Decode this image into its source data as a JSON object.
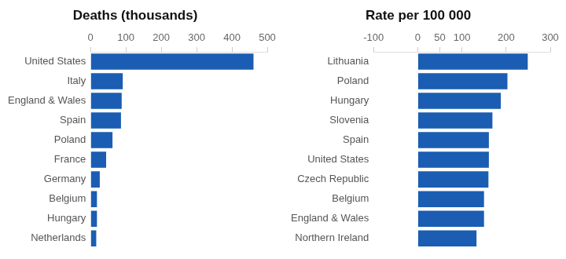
{
  "chart_data": [
    {
      "type": "bar",
      "title": "Deaths (thousands)",
      "orientation": "horizontal",
      "grid": false,
      "color": "#1a5db3",
      "categories": [
        "United States",
        "Italy",
        "England & Wales",
        "Spain",
        "Poland",
        "France",
        "Germany",
        "Belgium",
        "Hungary",
        "Netherlands"
      ],
      "values": [
        461,
        91,
        88,
        86,
        62,
        44,
        26,
        18,
        18,
        16
      ],
      "xlim": [
        0,
        500
      ],
      "xticks": [
        0,
        100,
        200,
        300,
        400,
        500
      ]
    },
    {
      "type": "bar",
      "title": "Rate per 100 000",
      "orientation": "horizontal",
      "grid": false,
      "color": "#1a5db3",
      "categories": [
        "Lithuania",
        "Poland",
        "Hungary",
        "Slovenia",
        "Spain",
        "United States",
        "Czech Republic",
        "Belgium",
        "England & Wales",
        "Northern Ireland"
      ],
      "values": [
        249,
        203,
        188,
        169,
        161,
        161,
        160,
        150,
        150,
        133
      ],
      "xlim": [
        -100,
        300
      ],
      "xticks": [
        -100,
        0,
        50,
        100,
        200,
        300
      ]
    }
  ]
}
